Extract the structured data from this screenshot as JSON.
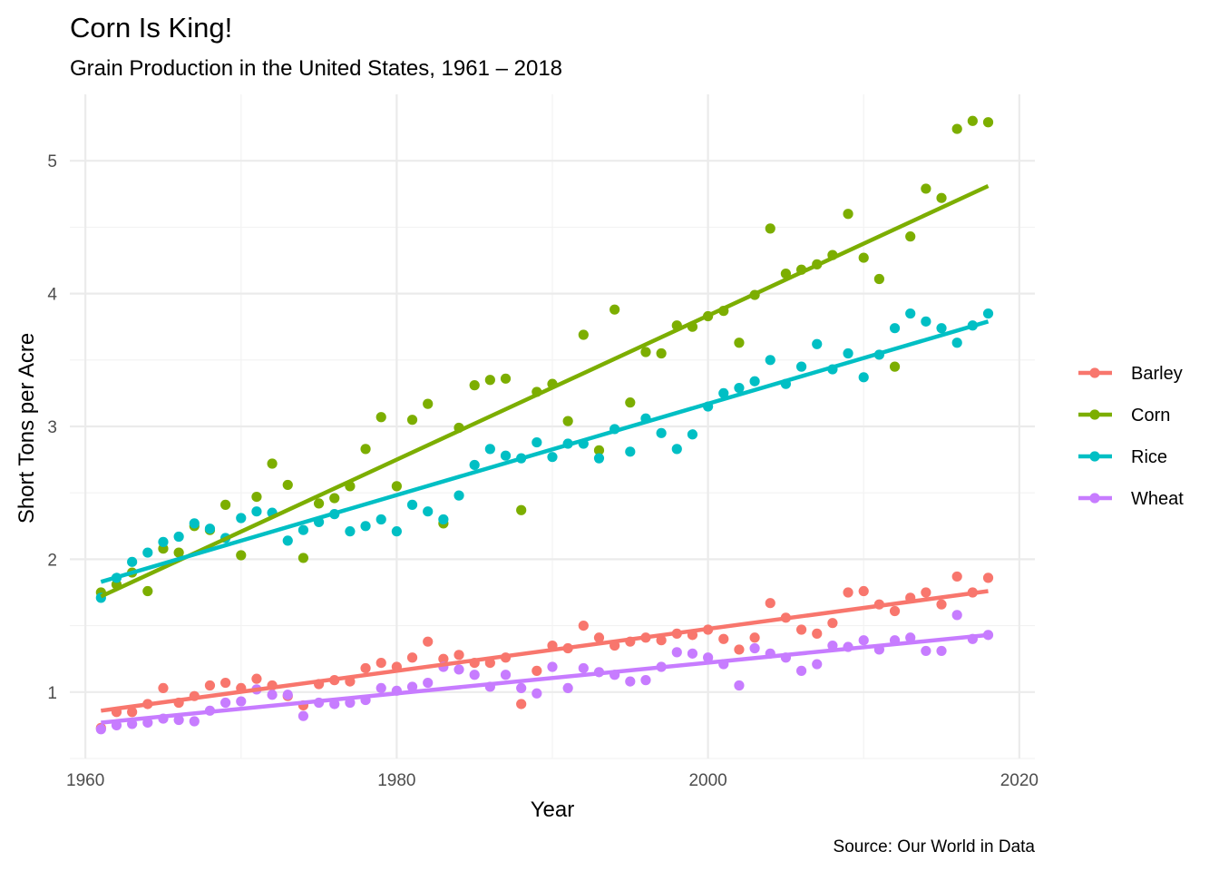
{
  "chart_data": {
    "type": "scatter",
    "title": "Corn Is King!",
    "subtitle": "Grain Production in the United States, 1961 – 2018",
    "xlabel": "Year",
    "ylabel": "Short Tons per Acre",
    "caption": "Source: Our World in Data",
    "xlim": [
      1959,
      2021
    ],
    "ylim": [
      0.5,
      5.5
    ],
    "x_ticks": [
      1960,
      1980,
      2000,
      2020
    ],
    "y_ticks": [
      1,
      2,
      3,
      4,
      5
    ],
    "grid": true,
    "legend_position": "right",
    "series": [
      {
        "name": "Barley",
        "color": "#F8766D",
        "x": [
          1961,
          1962,
          1963,
          1964,
          1965,
          1966,
          1967,
          1968,
          1969,
          1970,
          1971,
          1972,
          1973,
          1974,
          1975,
          1976,
          1977,
          1978,
          1979,
          1980,
          1981,
          1982,
          1983,
          1984,
          1985,
          1986,
          1987,
          1988,
          1989,
          1990,
          1991,
          1992,
          1993,
          1994,
          1995,
          1996,
          1997,
          1998,
          1999,
          2000,
          2001,
          2002,
          2003,
          2004,
          2005,
          2006,
          2007,
          2008,
          2009,
          2010,
          2011,
          2012,
          2013,
          2014,
          2015,
          2016,
          2017,
          2018
        ],
        "y": [
          0.73,
          0.85,
          0.85,
          0.91,
          1.03,
          0.92,
          0.97,
          1.05,
          1.07,
          1.03,
          1.1,
          1.05,
          0.97,
          0.9,
          1.06,
          1.09,
          1.08,
          1.18,
          1.22,
          1.19,
          1.26,
          1.38,
          1.25,
          1.28,
          1.22,
          1.22,
          1.26,
          0.91,
          1.16,
          1.35,
          1.33,
          1.5,
          1.41,
          1.35,
          1.38,
          1.41,
          1.39,
          1.44,
          1.43,
          1.47,
          1.4,
          1.32,
          1.41,
          1.67,
          1.56,
          1.47,
          1.44,
          1.52,
          1.75,
          1.76,
          1.66,
          1.61,
          1.71,
          1.75,
          1.66,
          1.87,
          1.75,
          1.86
        ],
        "trend": [
          0.86,
          1.76
        ]
      },
      {
        "name": "Corn",
        "color": "#7CAE00",
        "x": [
          1961,
          1962,
          1963,
          1964,
          1965,
          1966,
          1967,
          1968,
          1969,
          1970,
          1971,
          1972,
          1973,
          1974,
          1975,
          1976,
          1977,
          1978,
          1979,
          1980,
          1981,
          1982,
          1983,
          1984,
          1985,
          1986,
          1987,
          1988,
          1989,
          1990,
          1991,
          1992,
          1993,
          1994,
          1995,
          1996,
          1997,
          1998,
          1999,
          2000,
          2001,
          2002,
          2003,
          2004,
          2005,
          2006,
          2007,
          2008,
          2009,
          2010,
          2011,
          2012,
          2013,
          2014,
          2015,
          2016,
          2017,
          2018
        ],
        "y": [
          1.75,
          1.81,
          1.9,
          1.76,
          2.08,
          2.05,
          2.25,
          2.22,
          2.41,
          2.03,
          2.47,
          2.72,
          2.56,
          2.01,
          2.42,
          2.46,
          2.55,
          2.83,
          3.07,
          2.55,
          3.05,
          3.17,
          2.27,
          2.99,
          3.31,
          3.35,
          3.36,
          2.37,
          3.26,
          3.32,
          3.04,
          3.69,
          2.82,
          3.88,
          3.18,
          3.56,
          3.55,
          3.76,
          3.75,
          3.83,
          3.87,
          3.63,
          3.99,
          4.49,
          4.15,
          4.18,
          4.22,
          4.29,
          4.6,
          4.27,
          4.11,
          3.45,
          4.43,
          4.79,
          4.72,
          5.24,
          5.3,
          5.29
        ],
        "trend": [
          1.72,
          4.81
        ]
      },
      {
        "name": "Rice",
        "color": "#00BFC4",
        "x": [
          1961,
          1962,
          1963,
          1964,
          1965,
          1966,
          1967,
          1968,
          1969,
          1970,
          1971,
          1972,
          1973,
          1974,
          1975,
          1976,
          1977,
          1978,
          1979,
          1980,
          1981,
          1982,
          1983,
          1984,
          1985,
          1986,
          1987,
          1988,
          1989,
          1990,
          1991,
          1992,
          1993,
          1994,
          1995,
          1996,
          1997,
          1998,
          1999,
          2000,
          2001,
          2002,
          2003,
          2004,
          2005,
          2006,
          2007,
          2008,
          2009,
          2010,
          2011,
          2012,
          2013,
          2014,
          2015,
          2016,
          2017,
          2018
        ],
        "y": [
          1.71,
          1.86,
          1.98,
          2.05,
          2.13,
          2.17,
          2.27,
          2.23,
          2.16,
          2.31,
          2.36,
          2.35,
          2.14,
          2.22,
          2.28,
          2.34,
          2.21,
          2.25,
          2.3,
          2.21,
          2.41,
          2.36,
          2.3,
          2.48,
          2.71,
          2.83,
          2.78,
          2.76,
          2.88,
          2.77,
          2.87,
          2.87,
          2.76,
          2.98,
          2.81,
          3.06,
          2.95,
          2.83,
          2.94,
          3.15,
          3.25,
          3.29,
          3.34,
          3.5,
          3.32,
          3.45,
          3.62,
          3.43,
          3.55,
          3.37,
          3.54,
          3.74,
          3.85,
          3.79,
          3.74,
          3.63,
          3.76,
          3.85
        ],
        "trend": [
          1.83,
          3.79
        ]
      },
      {
        "name": "Wheat",
        "color": "#C77CFF",
        "x": [
          1961,
          1962,
          1963,
          1964,
          1965,
          1966,
          1967,
          1968,
          1969,
          1970,
          1971,
          1972,
          1973,
          1974,
          1975,
          1976,
          1977,
          1978,
          1979,
          1980,
          1981,
          1982,
          1983,
          1984,
          1985,
          1986,
          1987,
          1988,
          1989,
          1990,
          1991,
          1992,
          1993,
          1994,
          1995,
          1996,
          1997,
          1998,
          1999,
          2000,
          2001,
          2002,
          2003,
          2004,
          2005,
          2006,
          2007,
          2008,
          2009,
          2010,
          2011,
          2012,
          2013,
          2014,
          2015,
          2016,
          2017,
          2018
        ],
        "y": [
          0.72,
          0.75,
          0.76,
          0.77,
          0.8,
          0.79,
          0.78,
          0.86,
          0.92,
          0.93,
          1.02,
          0.98,
          0.98,
          0.82,
          0.92,
          0.91,
          0.92,
          0.94,
          1.03,
          1.01,
          1.04,
          1.07,
          1.19,
          1.17,
          1.13,
          1.04,
          1.13,
          1.03,
          0.99,
          1.19,
          1.03,
          1.18,
          1.15,
          1.13,
          1.08,
          1.09,
          1.19,
          1.3,
          1.29,
          1.26,
          1.21,
          1.05,
          1.33,
          1.29,
          1.26,
          1.16,
          1.21,
          1.35,
          1.34,
          1.39,
          1.32,
          1.39,
          1.41,
          1.31,
          1.31,
          1.58,
          1.4,
          1.43
        ],
        "trend": [
          0.77,
          1.43
        ]
      }
    ]
  }
}
